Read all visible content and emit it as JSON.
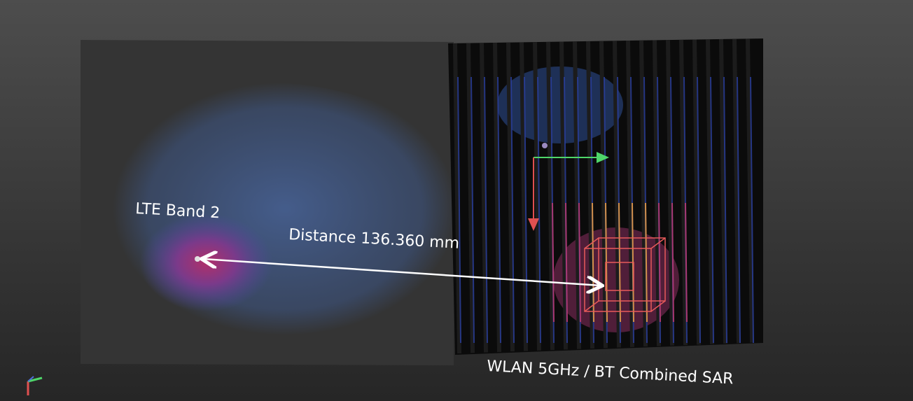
{
  "labels": {
    "source_a": "LTE Band 2",
    "distance": "Distance 136.360 mm",
    "source_b": "WLAN 5GHz / BT Combined SAR"
  }
}
